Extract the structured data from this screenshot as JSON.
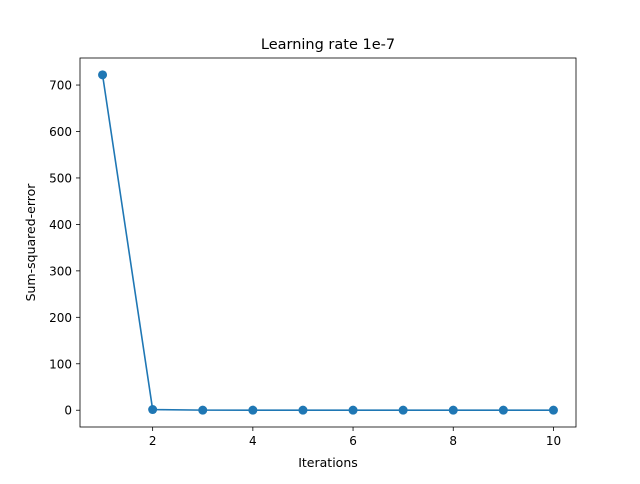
{
  "chart_data": {
    "type": "line",
    "title": "Learning rate 1e-7",
    "xlabel": "Iterations",
    "ylabel": "Sum-squared-error",
    "x": [
      1,
      2,
      3,
      4,
      5,
      6,
      7,
      8,
      9,
      10
    ],
    "series": [
      {
        "values": [
          722,
          1.5,
          0.2,
          0.1,
          0.1,
          0.1,
          0.1,
          0.1,
          0.1,
          0.1
        ],
        "color": "#1f77b4",
        "marker": "circle"
      }
    ],
    "xlim": [
      0.55,
      10.45
    ],
    "ylim": [
      -36.1,
      758.2
    ],
    "xticks": [
      2,
      4,
      6,
      8,
      10
    ],
    "yticks": [
      0,
      100,
      200,
      300,
      400,
      500,
      600,
      700
    ],
    "grid": false,
    "legend": "none"
  }
}
